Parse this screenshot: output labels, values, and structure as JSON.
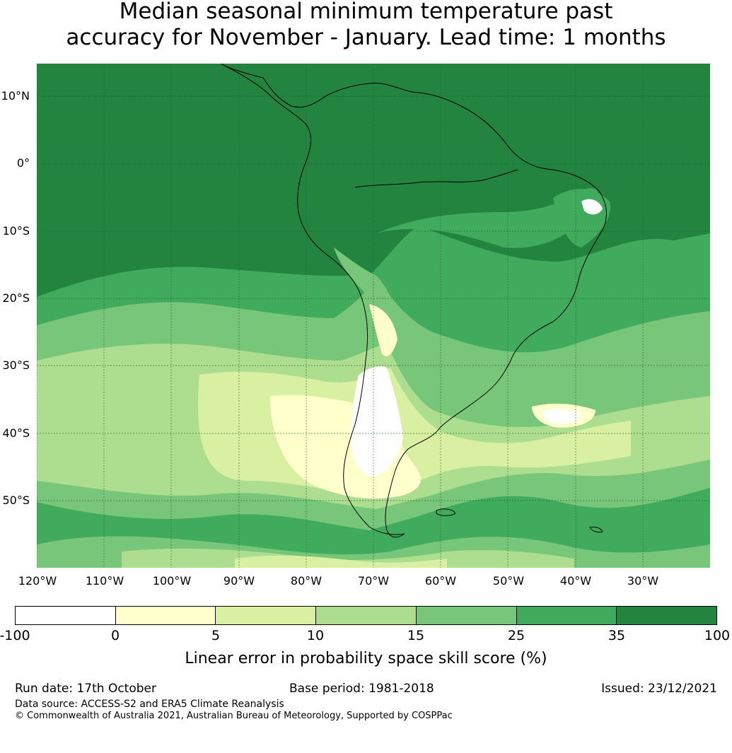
{
  "title": {
    "line1": "Median seasonal minimum temperature past",
    "line2": "accuracy for November - January. Lead time: 1 months"
  },
  "map": {
    "region": "South America",
    "lat_labels": [
      "10°N",
      "0°",
      "10°S",
      "20°S",
      "30°S",
      "40°S",
      "50°S"
    ],
    "lon_labels": [
      "120°W",
      "110°W",
      "100°W",
      "90°W",
      "80°W",
      "70°W",
      "60°W",
      "50°W",
      "40°W",
      "30°W"
    ]
  },
  "colorbar": {
    "ticks": [
      "-100",
      "0",
      "5",
      "10",
      "15",
      "25",
      "35",
      "100"
    ],
    "colors": [
      "#ffffff",
      "#ffffcc",
      "#d9f0a3",
      "#addd8e",
      "#78c679",
      "#41ab5d",
      "#23843f"
    ],
    "label": "Linear error in probability space skill score (%)"
  },
  "footer": {
    "run_date": "Run date: 17th October",
    "base_period": "Base period: 1981-2018",
    "issued": "Issued: 23/12/2021",
    "data_source": "Data source: ACCESS-S2 and ERA5 Climate Reanalysis",
    "copyright": "© Commonwealth of Australia 2021, Australian Bureau of Meteorology, Supported by COSPPac"
  }
}
